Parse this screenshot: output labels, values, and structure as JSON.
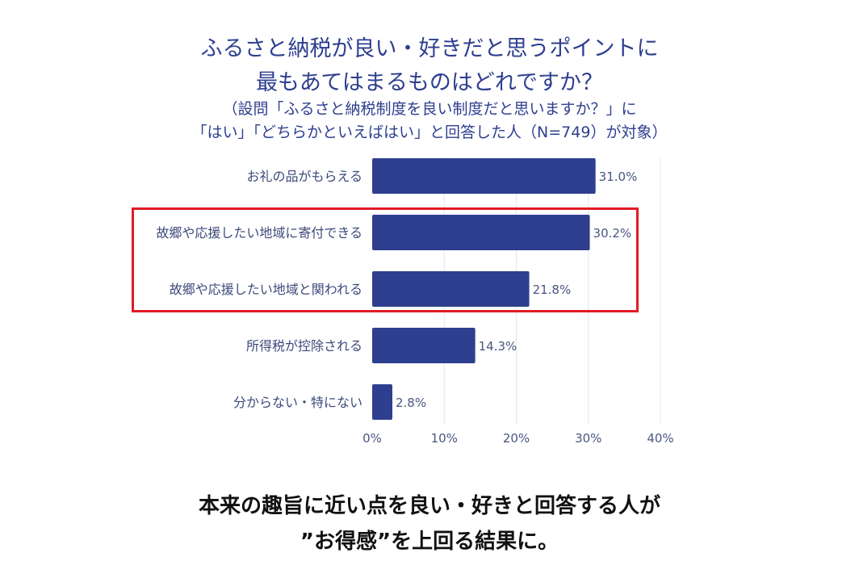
{
  "chart_data": {
    "type": "bar",
    "orientation": "horizontal",
    "title": [
      "ふるさと納税が良い・好きだと思うポイントに",
      "最もあてはまるものはどれですか？"
    ],
    "subtitle": [
      "（設問「ふるさと納税制度を良い制度だと思いますか？」に",
      "「はい」「どちらかといえばはい」と回答した人（N=749）が対象）"
    ],
    "categories": [
      "お礼の品がもらえる",
      "故郷や応援したい地域に寄付できる",
      "故郷や応援したい地域と関われる",
      "所得税が控除される",
      "分からない・特にない"
    ],
    "values": [
      31.0,
      30.2,
      21.8,
      14.3,
      2.8
    ],
    "value_labels": [
      "31.0%",
      "30.2%",
      "21.8%",
      "14.3%",
      "2.8%"
    ],
    "x_ticks": [
      0,
      10,
      20,
      30,
      40
    ],
    "x_tick_labels": [
      "0%",
      "10%",
      "20%",
      "30%",
      "40%"
    ],
    "xlim": [
      0,
      40
    ],
    "grid": true,
    "bar_color": "#2e3f8f",
    "highlight": {
      "categories": [
        "故郷や応援したい地域に寄付できる",
        "故郷や応援したい地域と関われる"
      ],
      "color": "#e01b24"
    }
  },
  "caption": {
    "line1": "本来の趣旨に近い点を良い・好きと回答する人が",
    "line2": "”お得感”を上回る結果に。"
  }
}
